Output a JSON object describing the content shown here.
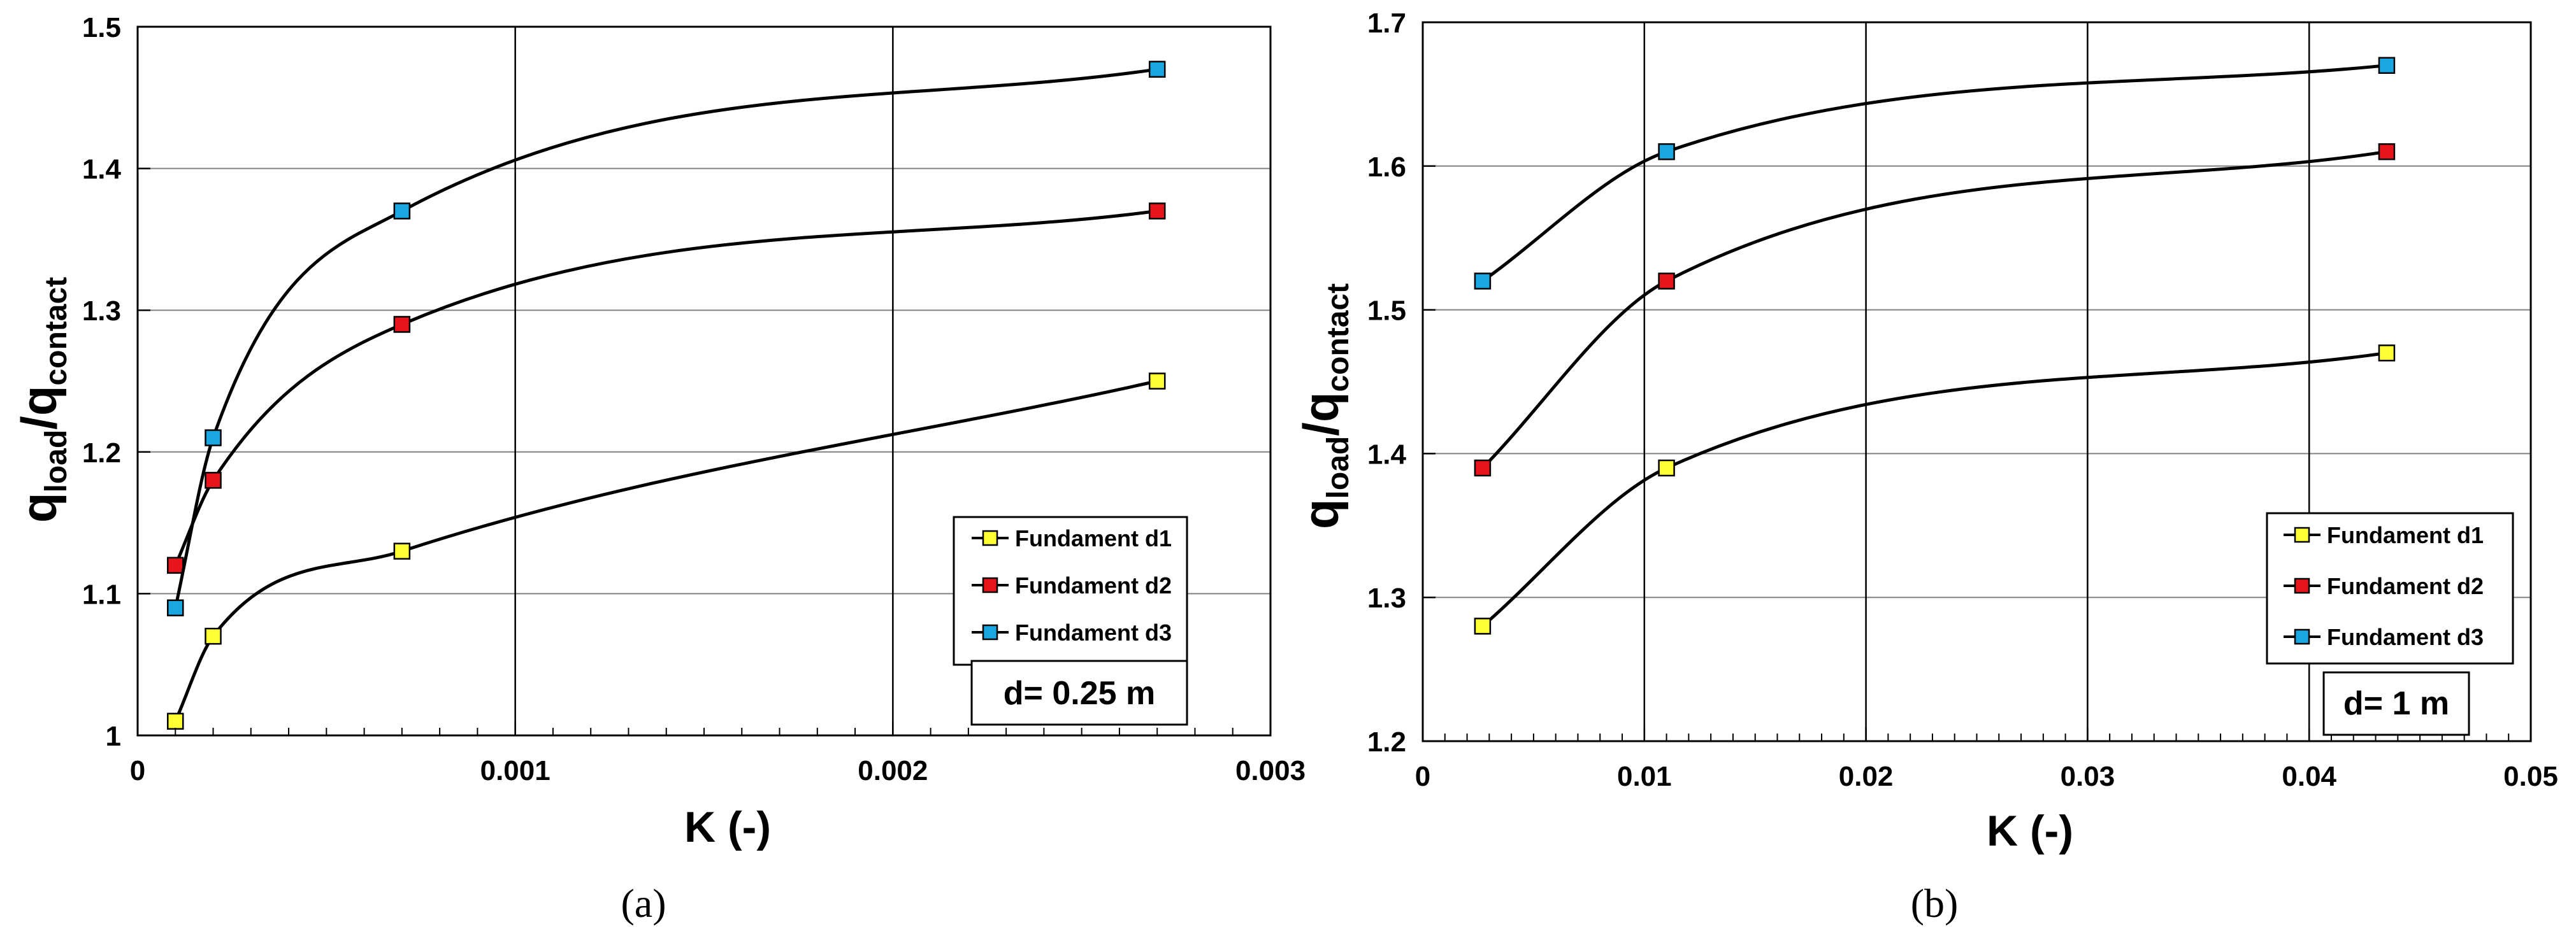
{
  "colors": {
    "d1": "#ffff33",
    "d2": "#e8141b",
    "d3": "#1aa6e0",
    "line": "#000000",
    "grid": "#808080"
  },
  "chart_data": [
    {
      "type": "line",
      "panel": "a",
      "caption": "(a)",
      "xlabel": "K (-)",
      "ylabel": {
        "q1": "q",
        "sub1": "load",
        "slash": "/q",
        "sub2": "contact"
      },
      "xlim": [
        0,
        0.003
      ],
      "ylim": [
        1,
        1.5
      ],
      "xticks": [
        0,
        0.001,
        0.002,
        0.003
      ],
      "xtick_labels": [
        "0",
        "0.001",
        "0.002",
        "0.003"
      ],
      "yticks": [
        1,
        1.1,
        1.2,
        1.3,
        1.4,
        1.5
      ],
      "ytick_labels": [
        "1",
        "1.1",
        "1.2",
        "1.3",
        "1.4",
        "1.5"
      ],
      "legend_position": "bottom-right",
      "note": "d= 0.25 m",
      "series": [
        {
          "name": "Fundament d1",
          "color_key": "d1",
          "x": [
            0.0001,
            0.0002,
            0.0007,
            0.0027
          ],
          "y": [
            1.01,
            1.07,
            1.13,
            1.25
          ]
        },
        {
          "name": "Fundament d2",
          "color_key": "d2",
          "x": [
            0.0001,
            0.0002,
            0.0007,
            0.0027
          ],
          "y": [
            1.12,
            1.18,
            1.29,
            1.37
          ]
        },
        {
          "name": "Fundament d3",
          "color_key": "d3",
          "x": [
            0.0001,
            0.0002,
            0.0007,
            0.0027
          ],
          "y": [
            1.09,
            1.21,
            1.37,
            1.47
          ]
        }
      ]
    },
    {
      "type": "line",
      "panel": "b",
      "caption": "(b)",
      "xlabel": "K (-)",
      "ylabel": {
        "q1": "q",
        "sub1": "load",
        "slash": "/q",
        "sub2": "contact"
      },
      "xlim": [
        0,
        0.05
      ],
      "ylim": [
        1.2,
        1.7
      ],
      "xticks": [
        0,
        0.01,
        0.02,
        0.03,
        0.04,
        0.05
      ],
      "xtick_labels": [
        "0",
        "0.01",
        "0.02",
        "0.03",
        "0.04",
        "0.05"
      ],
      "yticks": [
        1.2,
        1.3,
        1.4,
        1.5,
        1.6,
        1.7
      ],
      "ytick_labels": [
        "1.2",
        "1.3",
        "1.4",
        "1.5",
        "1.6",
        "1.7"
      ],
      "legend_position": "bottom-right",
      "note": "d= 1 m",
      "series": [
        {
          "name": "Fundament d1",
          "color_key": "d1",
          "x": [
            0.0027,
            0.011,
            0.0435
          ],
          "y": [
            1.28,
            1.39,
            1.47
          ]
        },
        {
          "name": "Fundament d2",
          "color_key": "d2",
          "x": [
            0.0027,
            0.011,
            0.0435
          ],
          "y": [
            1.39,
            1.52,
            1.61
          ]
        },
        {
          "name": "Fundament d3",
          "color_key": "d3",
          "x": [
            0.0027,
            0.011,
            0.0435
          ],
          "y": [
            1.52,
            1.61,
            1.67
          ]
        }
      ]
    }
  ]
}
